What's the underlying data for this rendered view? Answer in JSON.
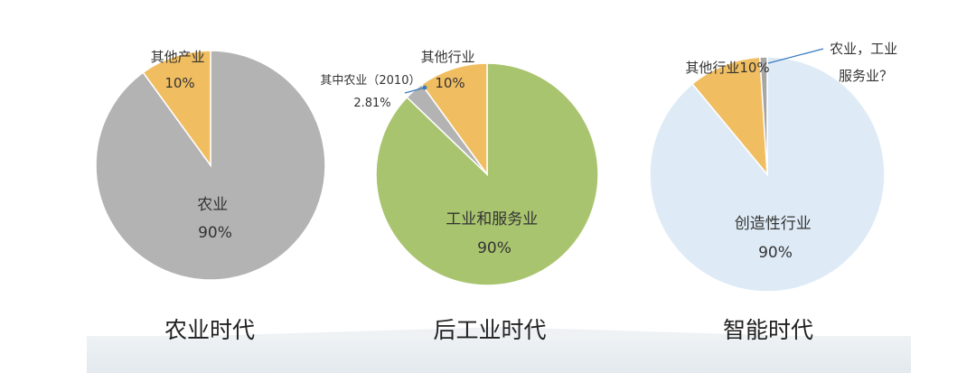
{
  "chart_data": [
    {
      "type": "pie",
      "title": "农业时代",
      "slices": [
        {
          "label_lines": [
            "农业",
            "90%"
          ],
          "value": 90,
          "color": "#b3b3b3"
        },
        {
          "label_lines": [
            "其他产业",
            "10%"
          ],
          "value": 10,
          "color": "#f0bd60"
        }
      ]
    },
    {
      "type": "pie",
      "title": "后工业时代",
      "slices": [
        {
          "label_lines": [
            "工业和服务业",
            "90%"
          ],
          "value": 87.19,
          "color": "#a9c46f"
        },
        {
          "label_lines": [
            "其中农业（2010）",
            "2.81%"
          ],
          "value": 2.81,
          "color": "#b3b3b3"
        },
        {
          "label_lines": [
            "其他行业",
            "10%"
          ],
          "value": 10,
          "color": "#f0bd60"
        }
      ]
    },
    {
      "type": "pie",
      "title": "智能时代",
      "slices": [
        {
          "label_lines": [
            "创造性行业",
            "90%"
          ],
          "value": 89,
          "color": "#deebf6"
        },
        {
          "label_lines": [
            "其他行业10%"
          ],
          "value": 10,
          "color": "#f0bd60"
        },
        {
          "label_lines": [
            "农业，工业",
            "服务业？"
          ],
          "value": 1,
          "color": "#a6a6a6"
        }
      ]
    }
  ]
}
